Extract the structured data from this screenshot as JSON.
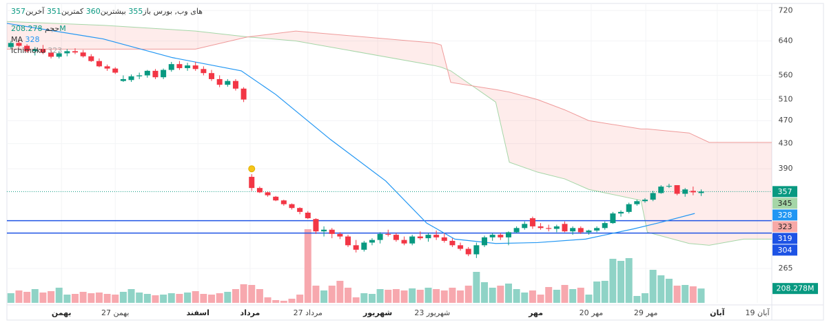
{
  "chart_data": {
    "type": "candlestick",
    "symbol": "های وب, بورس",
    "ohlc_names": [
      "باز",
      "بیشترین",
      "کمترین",
      "آخرین"
    ],
    "up_color": "#089981",
    "down_color": "#f23645",
    "log_scale": true,
    "ylim": [
      232,
      740
    ],
    "yticks": [
      265,
      390,
      430,
      470,
      510,
      560,
      640,
      720
    ],
    "xlim": [
      -0.5,
      94.8
    ],
    "xticks": [
      {
        "value": 6.3,
        "label": "بهمن"
      },
      {
        "value": 13,
        "label": "27 بهمن"
      },
      {
        "value": 23.3,
        "label": "اسفند"
      },
      {
        "value": 29.8,
        "label": "مرداد"
      },
      {
        "value": 37,
        "label": "27 مرداد"
      },
      {
        "value": 45.7,
        "label": "شهریور"
      },
      {
        "value": 52.5,
        "label": "23 شهریور"
      },
      {
        "value": 65.4,
        "label": "مهر"
      },
      {
        "value": 72.3,
        "label": "20 مهر"
      },
      {
        "value": 79.1,
        "label": "29 مهر"
      },
      {
        "value": 88,
        "label": "آبان"
      },
      {
        "value": 93,
        "label": "19 آبان"
      }
    ],
    "candles": [
      [
        625,
        640,
        620,
        635
      ],
      [
        635,
        645,
        625,
        628
      ],
      [
        628,
        632,
        612,
        615
      ],
      [
        615,
        625,
        605,
        620
      ],
      [
        620,
        630,
        608,
        612
      ],
      [
        612,
        618,
        598,
        602
      ],
      [
        602,
        615,
        598,
        610
      ],
      [
        610,
        620,
        603,
        615
      ],
      [
        615,
        622,
        608,
        612
      ],
      [
        612,
        618,
        600,
        603
      ],
      [
        603,
        608,
        590,
        592
      ],
      [
        592,
        598,
        578,
        580
      ],
      [
        580,
        584,
        570,
        575
      ],
      [
        575,
        578,
        563,
        566
      ],
      [
        548,
        560,
        546,
        552
      ],
      [
        550,
        562,
        546,
        558
      ],
      [
        558,
        566,
        552,
        560
      ],
      [
        560,
        572,
        555,
        570
      ],
      [
        570,
        574,
        552,
        556
      ],
      [
        556,
        575,
        552,
        572
      ],
      [
        572,
        590,
        568,
        585
      ],
      [
        585,
        592,
        572,
        576
      ],
      [
        576,
        588,
        570,
        582
      ],
      [
        582,
        590,
        570,
        574
      ],
      [
        574,
        580,
        560,
        565
      ],
      [
        565,
        572,
        548,
        552
      ],
      [
        552,
        560,
        535,
        540
      ],
      [
        540,
        552,
        536,
        548
      ],
      [
        548,
        552,
        528,
        532
      ],
      [
        532,
        535,
        505,
        510
      ],
      [
        378,
        382,
        358,
        362
      ],
      [
        362,
        364,
        355,
        356
      ],
      [
        356,
        357,
        350,
        352
      ],
      [
        350,
        351,
        344,
        345
      ],
      [
        345,
        346,
        338,
        340
      ],
      [
        340,
        341,
        333,
        335
      ],
      [
        335,
        336,
        327,
        330
      ],
      [
        329,
        331,
        321,
        322
      ],
      [
        321,
        322,
        303,
        306
      ],
      [
        306,
        312,
        300,
        308
      ],
      [
        308,
        310,
        298,
        303
      ],
      [
        303,
        305,
        297,
        300
      ],
      [
        300,
        302,
        288,
        290
      ],
      [
        290,
        296,
        282,
        285
      ],
      [
        285,
        295,
        283,
        293
      ],
      [
        293,
        298,
        290,
        296
      ],
      [
        296,
        305,
        292,
        303
      ],
      [
        303,
        308,
        300,
        302
      ],
      [
        302,
        304,
        294,
        296
      ],
      [
        296,
        300,
        290,
        292
      ],
      [
        292,
        302,
        290,
        300
      ],
      [
        300,
        306,
        296,
        298
      ],
      [
        298,
        304,
        294,
        302
      ],
      [
        302,
        307,
        296,
        299
      ],
      [
        299,
        304,
        293,
        295
      ],
      [
        295,
        298,
        288,
        290
      ],
      [
        290,
        293,
        284,
        286
      ],
      [
        286,
        288,
        278,
        280
      ],
      [
        280,
        293,
        276,
        290
      ],
      [
        290,
        301,
        288,
        299
      ],
      [
        299,
        304,
        295,
        302
      ],
      [
        302,
        304,
        296,
        299
      ],
      [
        299,
        306,
        290,
        305
      ],
      [
        305,
        312,
        304,
        310
      ],
      [
        310,
        318,
        308,
        315
      ],
      [
        322,
        324,
        309,
        312
      ],
      [
        312,
        316,
        308,
        310
      ],
      [
        310,
        314,
        306,
        309
      ],
      [
        309,
        314,
        305,
        312
      ],
      [
        315,
        318,
        305,
        306
      ],
      [
        306,
        312,
        302,
        310
      ],
      [
        310,
        312,
        303,
        305
      ],
      [
        305,
        308,
        302,
        307
      ],
      [
        307,
        312,
        305,
        310
      ],
      [
        310,
        318,
        308,
        316
      ],
      [
        316,
        330,
        315,
        328
      ],
      [
        328,
        332,
        324,
        330
      ],
      [
        330,
        342,
        328,
        340
      ],
      [
        340,
        346,
        338,
        344
      ],
      [
        344,
        348,
        342,
        346
      ],
      [
        346,
        358,
        344,
        355
      ],
      [
        355,
        366,
        354,
        364
      ],
      [
        364,
        368,
        362,
        365
      ],
      [
        366,
        366,
        352,
        354
      ],
      [
        354,
        362,
        350,
        360
      ],
      [
        358,
        364,
        352,
        356
      ],
      [
        355,
        360,
        351,
        357
      ]
    ],
    "volume": {
      "name": "حجم",
      "color_up": "#8fd3c6",
      "color_down": "#f7a8ae",
      "vlim": [
        0,
        2000
      ],
      "values": [
        140,
        180,
        160,
        200,
        150,
        170,
        220,
        120,
        130,
        160,
        140,
        150,
        130,
        120,
        160,
        200,
        150,
        130,
        110,
        120,
        140,
        130,
        150,
        170,
        130,
        120,
        140,
        160,
        200,
        270,
        260,
        200,
        80,
        40,
        30,
        60,
        120,
        1070,
        250,
        180,
        250,
        320,
        220,
        80,
        140,
        130,
        200,
        190,
        200,
        180,
        210,
        190,
        220,
        200,
        180,
        220,
        180,
        250,
        450,
        300,
        220,
        250,
        280,
        200,
        150,
        180,
        120,
        230,
        190,
        260,
        200,
        220,
        120,
        310,
        320,
        640,
        610,
        650,
        100,
        140,
        480,
        400,
        350,
        250,
        260,
        240,
        208.278
      ],
      "last_label": "208.278M"
    },
    "ma": {
      "name": "MA",
      "color": "#2196f3",
      "x": [
        -0.5,
        11.5,
        20.1,
        28.7,
        33,
        39.8,
        46.7,
        51.8,
        55.3,
        60.4,
        65.6,
        71.6,
        77.6,
        81,
        85.2
      ],
      "values": [
        685,
        645,
        600,
        570,
        520,
        437,
        372,
        316,
        297,
        292,
        293,
        297,
        309,
        317,
        328
      ]
    },
    "ichimoku": {
      "name": "Ichimoku",
      "value": 323,
      "span_a_color": "#a5d6a7",
      "span_b_color": "#ef9a9a",
      "fill": "rgba(244,67,54,0.1)",
      "x": [
        -0.5,
        11.5,
        23,
        29.5,
        35.5,
        52.7,
        53.6,
        54.8,
        60.4,
        62.1,
        65.6,
        69,
        72,
        78.5,
        79.3,
        84.5,
        87,
        91.3,
        94.8
      ],
      "span_a": [
        690,
        680,
        665,
        650,
        640,
        582,
        578,
        570,
        505,
        400,
        385,
        375,
        360,
        345,
        305,
        292,
        290,
        297,
        297
      ],
      "span_b": [
        620,
        620,
        620,
        650,
        665,
        635,
        630,
        545,
        530,
        525,
        510,
        490,
        470,
        455,
        455,
        448,
        432,
        432,
        432
      ]
    },
    "hlines": [
      319,
      304
    ],
    "hline_color": "#1e53e5",
    "alert_marker": {
      "x": 30,
      "value": 390,
      "color": "#f5c518"
    },
    "side_labels": [
      {
        "value": 345,
        "color": "#a5d6a7"
      },
      {
        "value": 323,
        "color": "#f7a9a7"
      }
    ],
    "grid": true
  }
}
